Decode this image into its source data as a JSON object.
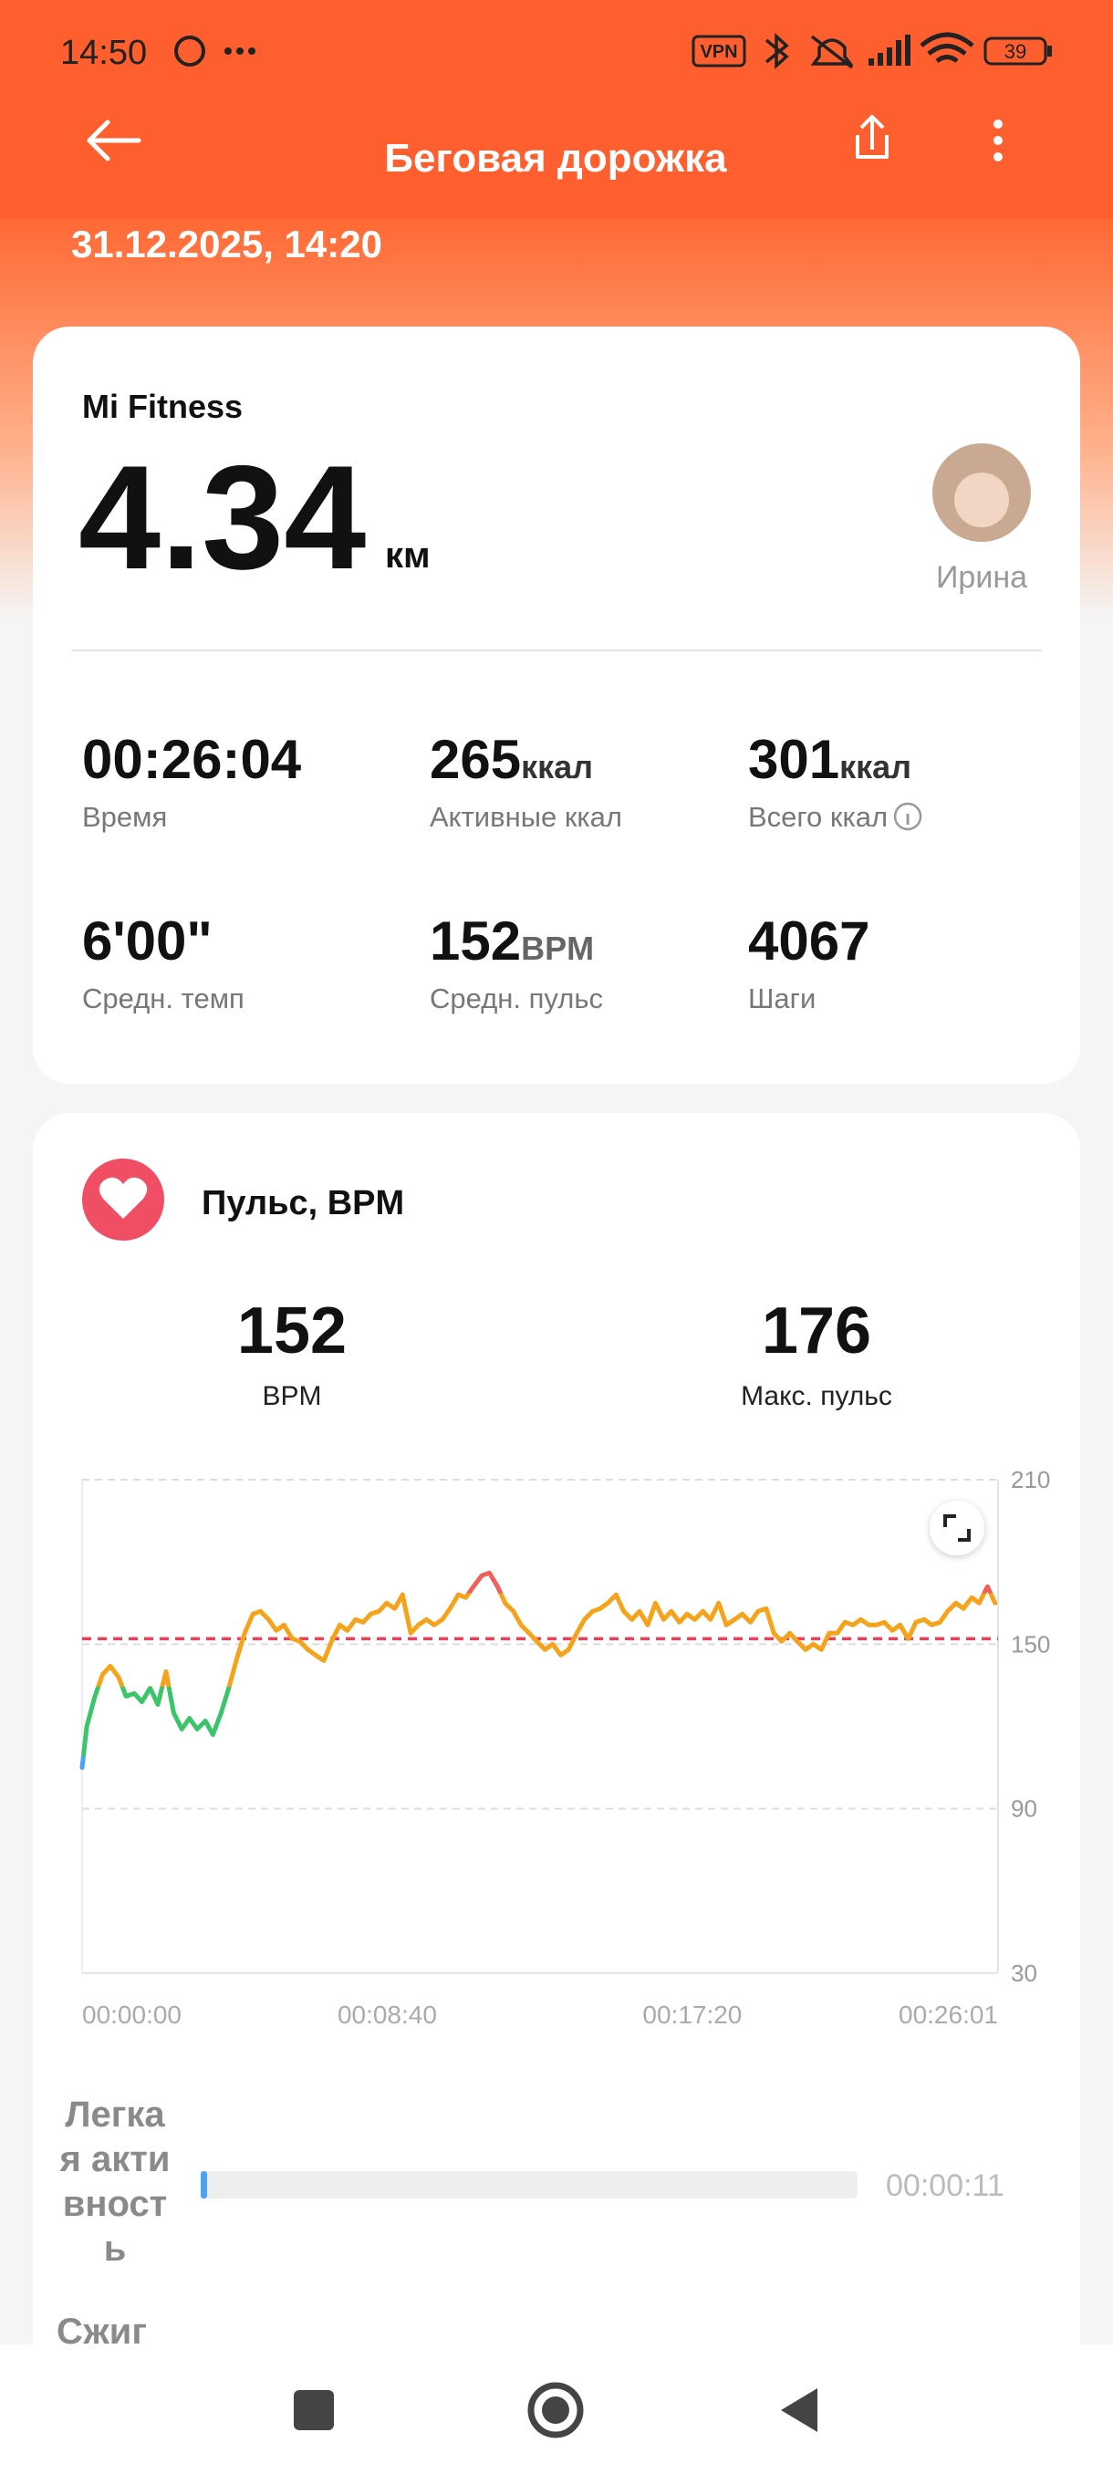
{
  "status_bar": {
    "time": "14:50",
    "vpn": "VPN",
    "battery": "39"
  },
  "header": {
    "title": "Беговая дорожка",
    "date": "31.12.2025, 14:20"
  },
  "summary": {
    "source": "Mi Fitness",
    "distance": "4.34",
    "distance_unit": "км",
    "user": "Ирина",
    "stats": [
      {
        "value": "00:26:04",
        "label": "Время"
      },
      {
        "value": "265",
        "unit": "ккал",
        "label": "Активные ккал"
      },
      {
        "value": "301",
        "unit": "ккал",
        "label": "Всего ккал"
      },
      {
        "value": "6'00\"",
        "label": "Средн. темп"
      },
      {
        "value": "152",
        "unit": "BPM",
        "label": "Средн. пульс"
      },
      {
        "value": "4067",
        "label": "Шаги"
      }
    ]
  },
  "heart_rate": {
    "title": "Пульс, BPM",
    "average": 152,
    "average_unit": "BPM",
    "max": 176,
    "max_label": "Макс. пульс",
    "chart_data": {
      "type": "line",
      "x": [
        0,
        8,
        22,
        35,
        48,
        62,
        75,
        89,
        102,
        116,
        129,
        143,
        156,
        170,
        183,
        196,
        210,
        223,
        237,
        250,
        264,
        277,
        291,
        304,
        318,
        331,
        344,
        358,
        371,
        385,
        398,
        412,
        425,
        439,
        452,
        466,
        479,
        492,
        506,
        519,
        533,
        546,
        560,
        573,
        587,
        600,
        614,
        627,
        641,
        654,
        667,
        681,
        694,
        708,
        721,
        735,
        748,
        762,
        775,
        789,
        802,
        816,
        829,
        843,
        856,
        870,
        883,
        896,
        910,
        923,
        937,
        950,
        964,
        977,
        991,
        1004,
        1018,
        1031,
        1044,
        1058,
        1071,
        1085,
        1098,
        1112,
        1125,
        1139,
        1152,
        1166,
        1179,
        1192,
        1206,
        1219,
        1233,
        1246,
        1260,
        1273,
        1287,
        1300,
        1314,
        1327,
        1341,
        1354,
        1367,
        1381,
        1394,
        1408,
        1421,
        1435,
        1448,
        1462,
        1475,
        1489,
        1502,
        1516,
        1529,
        1543,
        1556
      ],
      "values": [
        105,
        120,
        131,
        139,
        142,
        138,
        131,
        132,
        129,
        134,
        128,
        140,
        125,
        119,
        123,
        119,
        122,
        117,
        125,
        134,
        145,
        154,
        161,
        162,
        159,
        155,
        157,
        152,
        151,
        148,
        146,
        144,
        151,
        157,
        155,
        159,
        158,
        161,
        162,
        165,
        163,
        168,
        154,
        157,
        159,
        157,
        159,
        163,
        168,
        167,
        171,
        175,
        176,
        171,
        165,
        162,
        157,
        154,
        151,
        148,
        150,
        146,
        148,
        154,
        159,
        162,
        163,
        165,
        168,
        162,
        159,
        162,
        157,
        165,
        159,
        162,
        158,
        161,
        159,
        162,
        159,
        165,
        157,
        159,
        161,
        158,
        162,
        163,
        154,
        151,
        154,
        151,
        148,
        150,
        148,
        154,
        154,
        158,
        157,
        159,
        157,
        157,
        158,
        155,
        157,
        152,
        158,
        159,
        157,
        158,
        162,
        165,
        163,
        167,
        165,
        171,
        165
      ],
      "xlim": [
        0,
        1561
      ],
      "xticks": [
        {
          "value": 0,
          "label": "00:00:00"
        },
        {
          "value": 520,
          "label": "00:08:40"
        },
        {
          "value": 1040,
          "label": "00:17:20"
        },
        {
          "value": 1561,
          "label": "00:26:01"
        }
      ],
      "ylim": [
        30,
        210
      ],
      "yticks": [
        30,
        90,
        150,
        210
      ],
      "y_axis_side": "right",
      "grid": true,
      "line_colors": [
        "#4ba3f5",
        "#3cc46a",
        "#f5a31a",
        "#f0605a"
      ],
      "reference_color": "#e8425a"
    }
  },
  "zones": [
    {
      "label": "Легкая активность",
      "duration": "00:00:11"
    },
    {
      "label": "Сжиг"
    }
  ]
}
